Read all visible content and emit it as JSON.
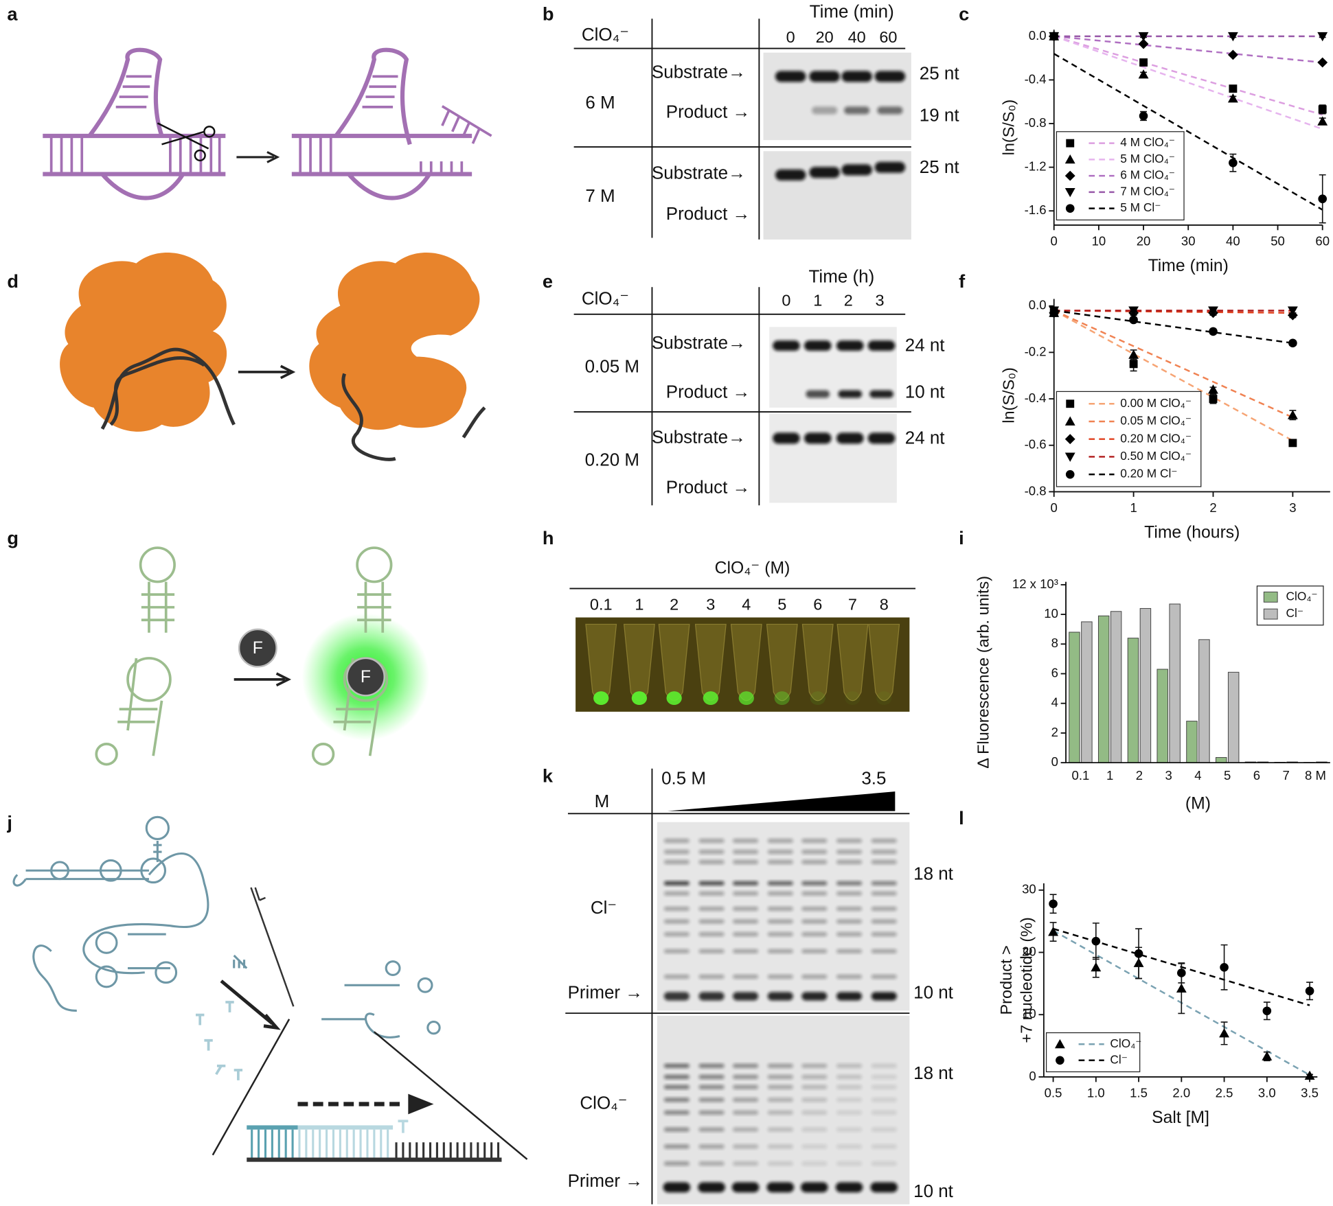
{
  "panel_labels": [
    "a",
    "b",
    "c",
    "d",
    "e",
    "f",
    "g",
    "h",
    "i",
    "j",
    "k",
    "l"
  ],
  "panel_b": {
    "time_label": "Time (min)",
    "anion": "ClO₄⁻",
    "lanes": [
      "0",
      "20",
      "40",
      "60"
    ],
    "rows": [
      {
        "conc": "6 M",
        "substrate": "Substrate→",
        "product": "Product →",
        "sizes": [
          "25 nt",
          "19 nt"
        ]
      },
      {
        "conc": "7 M",
        "substrate": "Substrate→",
        "product": "Product →",
        "sizes": [
          "25 nt"
        ]
      }
    ]
  },
  "panel_e": {
    "time_label": "Time (h)",
    "anion": "ClO₄⁻",
    "lanes": [
      "0",
      "1",
      "2",
      "3"
    ],
    "rows": [
      {
        "conc": "0.05 M",
        "substrate": "Substrate→",
        "product": "Product →",
        "sizes": [
          "24 nt",
          "10 nt"
        ]
      },
      {
        "conc": "0.20 M",
        "substrate": "Substrate→",
        "product": "Product →",
        "sizes": [
          "24 nt"
        ]
      }
    ]
  },
  "panel_g": {
    "fluorophore": [
      "F",
      "F"
    ]
  },
  "panel_h": {
    "title": "ClO₄⁻ (M)",
    "lanes": [
      "0.1",
      "1",
      "2",
      "3",
      "4",
      "5",
      "6",
      "7",
      "8"
    ]
  },
  "panel_k": {
    "range_start": "0.5 M",
    "range_end": "3.5",
    "axis_label": "M",
    "rows": [
      {
        "anion": "Cl⁻",
        "primer": "Primer →",
        "sizes": [
          "18 nt",
          "10 nt"
        ]
      },
      {
        "anion": "ClO₄⁻",
        "primer": "Primer →",
        "sizes": [
          "18 nt",
          "10 nt"
        ]
      }
    ]
  },
  "chart_data": [
    {
      "type": "scatter",
      "xlabel": "Time (min)",
      "ylabel": "ln(S/S₀)",
      "xlim": [
        0,
        60
      ],
      "ylim": [
        -1.73,
        0.06
      ],
      "xticks": [
        0,
        10,
        20,
        30,
        40,
        50,
        60
      ],
      "yticks": [
        {
          "value": 0,
          "label": "0.0"
        },
        -0.4,
        -0.8,
        -1.2,
        -1.6
      ],
      "legend": "lower left",
      "series": [
        {
          "name": "4 M ClO₄⁻",
          "marker": "square",
          "color": "#dc9ee0",
          "marker_color": "#000000",
          "x": [
            0,
            20,
            40,
            60
          ],
          "values": [
            0,
            -0.24,
            -0.48,
            -0.67
          ],
          "errors": [
            0.01,
            0.02,
            0.02,
            0.04
          ],
          "fit": {
            "x": [
              0,
              60
            ],
            "y": [
              0,
              -0.72
            ]
          }
        },
        {
          "name": "5 M ClO₄⁻",
          "marker": "triangle",
          "color": "#e6b4ee",
          "marker_color": "#000000",
          "x": [
            0,
            20,
            40,
            60
          ],
          "values": [
            0,
            -0.35,
            -0.57,
            -0.78
          ],
          "errors": [
            0.01,
            0.02,
            0.02,
            0.03
          ],
          "fit": {
            "x": [
              0,
              60
            ],
            "y": [
              0,
              -0.85
            ]
          }
        },
        {
          "name": "6 M ClO₄⁻",
          "marker": "diamond",
          "color": "#b070c2",
          "marker_color": "#000000",
          "x": [
            0,
            20,
            40,
            60
          ],
          "values": [
            0,
            -0.07,
            -0.17,
            -0.24
          ],
          "errors": [
            0.01,
            0.01,
            0.01,
            0.01
          ],
          "fit": {
            "x": [
              0,
              60
            ],
            "y": [
              0,
              -0.24
            ]
          }
        },
        {
          "name": "7 M ClO₄⁻",
          "marker": "triangle-down",
          "color": "#9858a8",
          "marker_color": "#000000",
          "x": [
            0,
            20,
            40,
            60
          ],
          "values": [
            0,
            0,
            0,
            0
          ],
          "errors": [
            0.01,
            0.01,
            0.01,
            0.01
          ],
          "fit": {
            "x": [
              0,
              60
            ],
            "y": [
              0,
              0
            ]
          }
        },
        {
          "name": "5 M Cl⁻",
          "marker": "circle",
          "color": "#000000",
          "marker_color": "#000000",
          "x": [
            0,
            20,
            40,
            60
          ],
          "values": [
            0,
            -0.73,
            -1.16,
            -1.49
          ],
          "errors": [
            0.01,
            0.04,
            0.08,
            0.22
          ],
          "fit": {
            "x": [
              0,
              60
            ],
            "y": [
              -0.16,
              -1.59
            ]
          }
        }
      ]
    },
    {
      "type": "scatter",
      "xlabel": "Time (hours)",
      "ylabel": "ln(S/S₀)",
      "xlim": [
        0,
        3.47
      ],
      "ylim": [
        -0.8,
        0.03
      ],
      "xticks": [
        0,
        1,
        2,
        3
      ],
      "yticks": [
        {
          "value": 0,
          "label": "0.0"
        },
        -0.2,
        -0.4,
        -0.6,
        -0.8
      ],
      "legend": "lower left",
      "series": [
        {
          "name": "0.00 M ClO₄⁻",
          "marker": "square",
          "color": "#f6a474",
          "marker_color": "#000000",
          "x": [
            0,
            1,
            2,
            3
          ],
          "values": [
            -0.03,
            -0.25,
            -0.4,
            -0.59
          ],
          "errors": [
            0.01,
            0.03,
            0.02,
            0.01
          ],
          "fit": {
            "x": [
              0,
              3
            ],
            "y": [
              -0.02,
              -0.58
            ]
          }
        },
        {
          "name": "0.05 M ClO₄⁻",
          "marker": "triangle",
          "color": "#f08252",
          "marker_color": "#000000",
          "x": [
            0,
            1,
            2,
            3
          ],
          "values": [
            -0.03,
            -0.21,
            -0.36,
            -0.47
          ],
          "errors": [
            0.01,
            0.02,
            0.01,
            0.02
          ],
          "fit": {
            "x": [
              0,
              3
            ],
            "y": [
              -0.02,
              -0.48
            ]
          }
        },
        {
          "name": "0.20 M ClO₄⁻",
          "marker": "diamond",
          "color": "#e0401e",
          "marker_color": "#000000",
          "x": [
            0,
            1,
            2,
            3
          ],
          "values": [
            -0.03,
            -0.03,
            -0.03,
            -0.04
          ],
          "errors": [
            0.01,
            0.01,
            0.01,
            0.01
          ],
          "fit": {
            "x": [
              0,
              3
            ],
            "y": [
              -0.02,
              -0.03
            ]
          }
        },
        {
          "name": "0.50 M ClO₄⁻",
          "marker": "triangle-down",
          "color": "#b01818",
          "marker_color": "#000000",
          "x": [
            0,
            1,
            2,
            3
          ],
          "values": [
            -0.02,
            -0.02,
            -0.02,
            -0.02
          ],
          "errors": [
            0.01,
            0.01,
            0.01,
            0.01
          ],
          "fit": {
            "x": [
              0,
              3
            ],
            "y": [
              -0.02,
              -0.02
            ]
          }
        },
        {
          "name": "0.20 M Cl⁻",
          "marker": "circle",
          "color": "#000000",
          "marker_color": "#000000",
          "x": [
            0,
            1,
            2,
            3
          ],
          "values": [
            -0.03,
            -0.06,
            -0.11,
            -0.16
          ],
          "errors": [
            0.01,
            0.01,
            0.01,
            0.01
          ],
          "fit": {
            "x": [
              0,
              3
            ],
            "y": [
              -0.02,
              -0.16
            ]
          }
        }
      ]
    },
    {
      "type": "bar",
      "xlabel": "(M)",
      "ylabel": "Δ Fluorescence (arb. units)",
      "ylim": [
        0,
        12.2
      ],
      "yticks": [
        0,
        2,
        4,
        6,
        8,
        10,
        {
          "value": 12,
          "label": "12 x 10³"
        }
      ],
      "legend": "upper right",
      "categories": [
        "0.1",
        "1",
        "2",
        "3",
        "4",
        "5",
        "6",
        "7",
        "8 M"
      ],
      "series": [
        {
          "name": "ClO₄⁻",
          "color": "#93bb85",
          "values": [
            8.8,
            9.9,
            8.4,
            6.3,
            2.8,
            0.35,
            0.05,
            0.03,
            0.02
          ]
        },
        {
          "name": "Cl⁻",
          "color": "#bdbdbd",
          "values": [
            9.5,
            10.2,
            10.4,
            10.7,
            8.3,
            6.1,
            0.05,
            0.05,
            0.05
          ]
        }
      ]
    },
    {
      "type": "scatter",
      "xlabel": "Salt [M]",
      "ylabel": [
        "Product >",
        "+7 nucleotide (%)"
      ],
      "xlim": [
        0.39,
        3.59
      ],
      "ylim": [
        0,
        31.1
      ],
      "xticks": [
        0.5,
        {
          "value": 1,
          "label": "1.0"
        },
        1.5,
        {
          "value": 2,
          "label": "2.0"
        },
        2.5,
        {
          "value": 3,
          "label": "3.0"
        },
        3.5
      ],
      "yticks": [
        0,
        10,
        20,
        30
      ],
      "legend": "lower left",
      "series": [
        {
          "name": "ClO₄⁻",
          "marker": "triangle",
          "color": "#7aa2b2",
          "marker_color": "#000000",
          "x": [
            0.5,
            1,
            1.5,
            2,
            2.5,
            3,
            3.5
          ],
          "values": [
            23.3,
            17.6,
            18.3,
            14.2,
            7,
            3.3,
            0.2
          ],
          "errors": [
            1.5,
            1.6,
            2.5,
            4,
            1.8,
            0.7,
            0.2
          ],
          "fit": {
            "x": [
              0.5,
              3.5
            ],
            "y": [
              23.5,
              0.3
            ]
          }
        },
        {
          "name": "Cl⁻",
          "marker": "circle",
          "color": "#000000",
          "marker_color": "#000000",
          "x": [
            0.5,
            1,
            1.5,
            2,
            2.5,
            3,
            3.5
          ],
          "values": [
            27.8,
            21.8,
            19.8,
            16.7,
            17.6,
            10.6,
            13.8
          ],
          "errors": [
            1.5,
            2.9,
            4,
            1.6,
            3.6,
            1.4,
            1.4
          ],
          "fit": {
            "x": [
              0.5,
              3.5
            ],
            "y": [
              23.8,
              11.5
            ]
          }
        }
      ]
    }
  ]
}
